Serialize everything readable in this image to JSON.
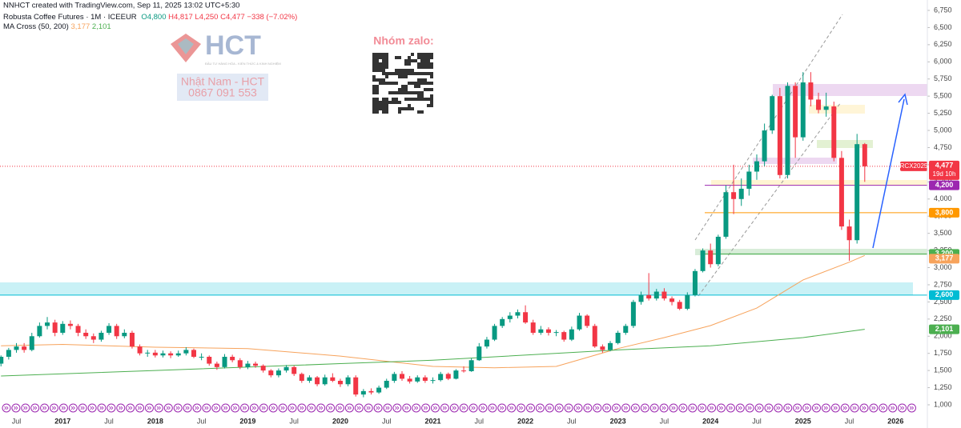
{
  "header": {
    "credit": "NNHCT created with TradingView.com, Sep 11, 2025 13:02 UTC+5:30",
    "symbol": "Robusta Coffee Futures · 1M · ICEEUR",
    "open": "O4,800",
    "high": "H4,817",
    "low": "L4,250",
    "close": "C4,477",
    "change": "−338 (−7.02%)",
    "indicator": "MA Cross (50, 200)"
  },
  "watermark": {
    "logo": "HCT",
    "logo_sub": "ĐẦU TƯ HÀNG HÓA - KIẾN THỨC & KINH NGHIỆM",
    "name": "Nhật Nam - HCT",
    "phone": "0867 091 553",
    "zalo": "Nhóm zalo:"
  },
  "chart_data": {
    "type": "candlestick",
    "up_color": "#089981",
    "down_color": "#f23645",
    "candles": [
      [
        1600,
        1720,
        1560,
        1700
      ],
      [
        1700,
        1830,
        1660,
        1800
      ],
      [
        1800,
        1900,
        1760,
        1850
      ],
      [
        1850,
        1900,
        1760,
        1800
      ],
      [
        1800,
        2050,
        1780,
        2000
      ],
      [
        2000,
        2200,
        1980,
        2150
      ],
      [
        2150,
        2280,
        2100,
        2200
      ],
      [
        2200,
        2240,
        2000,
        2050
      ],
      [
        2050,
        2220,
        2020,
        2180
      ],
      [
        2180,
        2230,
        2100,
        2150
      ],
      [
        2150,
        2180,
        2000,
        2050
      ],
      [
        2050,
        2100,
        1960,
        2000
      ],
      [
        2000,
        2040,
        1900,
        1950
      ],
      [
        1950,
        2080,
        1920,
        2050
      ],
      [
        2050,
        2190,
        2020,
        2150
      ],
      [
        2150,
        2180,
        1960,
        2000
      ],
      [
        2000,
        2100,
        1970,
        2050
      ],
      [
        2050,
        2080,
        1820,
        1850
      ],
      [
        1850,
        1880,
        1720,
        1750
      ],
      [
        1750,
        1800,
        1700,
        1760
      ],
      [
        1760,
        1800,
        1690,
        1720
      ],
      [
        1720,
        1790,
        1690,
        1750
      ],
      [
        1750,
        1780,
        1680,
        1720
      ],
      [
        1720,
        1790,
        1700,
        1750
      ],
      [
        1750,
        1840,
        1720,
        1800
      ],
      [
        1800,
        1820,
        1680,
        1700
      ],
      [
        1700,
        1750,
        1650,
        1700
      ],
      [
        1700,
        1720,
        1570,
        1600
      ],
      [
        1600,
        1630,
        1510,
        1550
      ],
      [
        1550,
        1740,
        1530,
        1700
      ],
      [
        1700,
        1730,
        1620,
        1650
      ],
      [
        1650,
        1680,
        1520,
        1550
      ],
      [
        1550,
        1640,
        1520,
        1600
      ],
      [
        1600,
        1630,
        1540,
        1570
      ],
      [
        1570,
        1590,
        1470,
        1500
      ],
      [
        1500,
        1520,
        1400,
        1430
      ],
      [
        1430,
        1530,
        1400,
        1500
      ],
      [
        1500,
        1580,
        1470,
        1550
      ],
      [
        1550,
        1570,
        1420,
        1450
      ],
      [
        1450,
        1470,
        1320,
        1350
      ],
      [
        1350,
        1430,
        1320,
        1400
      ],
      [
        1400,
        1420,
        1270,
        1300
      ],
      [
        1300,
        1440,
        1280,
        1400
      ],
      [
        1400,
        1460,
        1330,
        1350
      ],
      [
        1350,
        1380,
        1260,
        1300
      ],
      [
        1300,
        1430,
        1270,
        1400
      ],
      [
        1400,
        1430,
        1120,
        1150
      ],
      [
        1150,
        1230,
        1110,
        1200
      ],
      [
        1200,
        1240,
        1150,
        1180
      ],
      [
        1180,
        1280,
        1160,
        1250
      ],
      [
        1250,
        1380,
        1230,
        1350
      ],
      [
        1350,
        1480,
        1320,
        1450
      ],
      [
        1450,
        1490,
        1350,
        1380
      ],
      [
        1380,
        1420,
        1310,
        1340
      ],
      [
        1340,
        1430,
        1320,
        1400
      ],
      [
        1400,
        1430,
        1320,
        1350
      ],
      [
        1350,
        1400,
        1310,
        1360
      ],
      [
        1360,
        1480,
        1340,
        1450
      ],
      [
        1450,
        1470,
        1360,
        1380
      ],
      [
        1380,
        1520,
        1370,
        1500
      ],
      [
        1500,
        1560,
        1470,
        1490
      ],
      [
        1490,
        1680,
        1480,
        1650
      ],
      [
        1650,
        1900,
        1640,
        1850
      ],
      [
        1850,
        1990,
        1820,
        1950
      ],
      [
        1950,
        2180,
        1930,
        2150
      ],
      [
        2150,
        2280,
        2120,
        2250
      ],
      [
        2250,
        2350,
        2200,
        2300
      ],
      [
        2300,
        2390,
        2260,
        2350
      ],
      [
        2350,
        2450,
        2180,
        2200
      ],
      [
        2200,
        2240,
        2020,
        2050
      ],
      [
        2050,
        2150,
        2020,
        2100
      ],
      [
        2100,
        2130,
        2010,
        2050
      ],
      [
        2050,
        2090,
        2000,
        2060
      ],
      [
        2060,
        2080,
        1920,
        1950
      ],
      [
        1950,
        2140,
        1930,
        2100
      ],
      [
        2100,
        2340,
        2080,
        2300
      ],
      [
        2300,
        2320,
        2120,
        2150
      ],
      [
        2150,
        2180,
        1830,
        1850
      ],
      [
        1850,
        1880,
        1760,
        1800
      ],
      [
        1800,
        1930,
        1780,
        1900
      ],
      [
        1900,
        2080,
        1880,
        2050
      ],
      [
        2050,
        2180,
        2020,
        2150
      ],
      [
        2150,
        2530,
        2120,
        2500
      ],
      [
        2500,
        2650,
        2460,
        2600
      ],
      [
        2600,
        2920,
        2520,
        2550
      ],
      [
        2550,
        2690,
        2520,
        2650
      ],
      [
        2650,
        2700,
        2520,
        2550
      ],
      [
        2550,
        2580,
        2450,
        2500
      ],
      [
        2500,
        2530,
        2380,
        2400
      ],
      [
        2400,
        2640,
        2380,
        2600
      ],
      [
        2600,
        2980,
        2580,
        2950
      ],
      [
        2950,
        3280,
        2930,
        3250
      ],
      [
        3250,
        3350,
        3000,
        3050
      ],
      [
        3050,
        3480,
        3020,
        3450
      ],
      [
        3450,
        4200,
        3420,
        4100
      ],
      [
        4100,
        4500,
        3780,
        4000
      ],
      [
        4000,
        4300,
        3900,
        4150
      ],
      [
        4150,
        4500,
        4050,
        4400
      ],
      [
        4400,
        4650,
        4280,
        4550
      ],
      [
        4550,
        5100,
        4480,
        5000
      ],
      [
        5000,
        5520,
        4950,
        5500
      ],
      [
        5500,
        5620,
        4300,
        4350
      ],
      [
        4350,
        5700,
        4300,
        5650
      ],
      [
        5650,
        5700,
        4600,
        4900
      ],
      [
        4900,
        5850,
        4850,
        5700
      ],
      [
        5700,
        5850,
        5350,
        5450
      ],
      [
        5450,
        5550,
        5250,
        5300
      ],
      [
        5300,
        5550,
        5200,
        5350
      ],
      [
        5350,
        5420,
        4550,
        4600
      ],
      [
        4600,
        4700,
        3550,
        3600
      ],
      [
        3600,
        3700,
        3100,
        3400
      ],
      [
        3400,
        4950,
        3350,
        4800
      ],
      [
        4800,
        4817,
        4250,
        4477
      ]
    ],
    "series": [
      {
        "name": "MA 50",
        "color": "#f7a35c",
        "x": [
          0,
          8,
          20,
          32,
          44,
          56,
          64,
          72,
          80,
          86,
          92,
          98,
          104,
          110,
          112
        ],
        "values": [
          1860,
          1880,
          1840,
          1820,
          1710,
          1560,
          1540,
          1560,
          1820,
          1980,
          2155,
          2410,
          2820,
          3080,
          3177
        ],
        "last_label": "3,177"
      },
      {
        "name": "MA 200",
        "color": "#4caf50",
        "x": [
          0,
          20,
          44,
          56,
          80,
          92,
          104,
          112
        ],
        "values": [
          1420,
          1500,
          1600,
          1650,
          1800,
          1860,
          1980,
          2101
        ],
        "last_label": "2,101"
      }
    ],
    "price_label": {
      "symbol": "RCX2025",
      "value": 4477,
      "label": "4,477",
      "countdown": "19d 10h"
    },
    "levels": [
      {
        "value": 4200,
        "label": "4,200",
        "color": "#9c27b0"
      },
      {
        "value": 3800,
        "label": "3,800",
        "color": "#ff9800"
      },
      {
        "value": 3200,
        "label": "3,200",
        "color": "#4caf50"
      },
      {
        "value": 2600,
        "label": "2,600",
        "color": "#00bcd4"
      }
    ],
    "ylim": [
      1000,
      6750
    ],
    "yticks": [
      {
        "value": 1000,
        "label": "1,000"
      },
      {
        "value": 1250,
        "label": "1,250"
      },
      {
        "value": 1500,
        "label": "1,500"
      },
      {
        "value": 1750,
        "label": "1,750"
      },
      {
        "value": 2000,
        "label": "2,000"
      },
      {
        "value": 2250,
        "label": "2,250"
      },
      {
        "value": 2500,
        "label": "2,500"
      },
      {
        "value": 2750,
        "label": "2,750"
      },
      {
        "value": 3000,
        "label": "3,000"
      },
      {
        "value": 3250,
        "label": "3,250"
      },
      {
        "value": 3500,
        "label": "3,500"
      },
      {
        "value": 3750,
        "label": "3,750"
      },
      {
        "value": 4000,
        "label": "4,000"
      },
      {
        "value": 4250,
        "label": "4,250"
      },
      {
        "value": 4500,
        "label": "4,500"
      },
      {
        "value": 4750,
        "label": "4,750"
      },
      {
        "value": 5000,
        "label": "5,000"
      },
      {
        "value": 5250,
        "label": "5,250"
      },
      {
        "value": 5500,
        "label": "5,500"
      },
      {
        "value": 5750,
        "label": "5,750"
      },
      {
        "value": 6000,
        "label": "6,000"
      },
      {
        "value": 6250,
        "label": "6,250"
      },
      {
        "value": 6500,
        "label": "6,500"
      },
      {
        "value": 6750,
        "label": "6,750"
      }
    ],
    "xticks": [
      {
        "value": 2,
        "label": "Jul"
      },
      {
        "value": 8,
        "label": "2017"
      },
      {
        "value": 14,
        "label": "Jul"
      },
      {
        "value": 20,
        "label": "2018"
      },
      {
        "value": 26,
        "label": "Jul"
      },
      {
        "value": 32,
        "label": "2019"
      },
      {
        "value": 38,
        "label": "Jul"
      },
      {
        "value": 44,
        "label": "2020"
      },
      {
        "value": 50,
        "label": "Jul"
      },
      {
        "value": 56,
        "label": "2021"
      },
      {
        "value": 62,
        "label": "Jul"
      },
      {
        "value": 68,
        "label": "2022"
      },
      {
        "value": 74,
        "label": "Jul"
      },
      {
        "value": 80,
        "label": "2023"
      },
      {
        "value": 86,
        "label": "Jul"
      },
      {
        "value": 92,
        "label": "2024"
      },
      {
        "value": 98,
        "label": "Jul"
      },
      {
        "value": 104,
        "label": "2025"
      },
      {
        "value": 110,
        "label": "Jul"
      },
      {
        "value": 116,
        "label": "2026"
      }
    ]
  }
}
